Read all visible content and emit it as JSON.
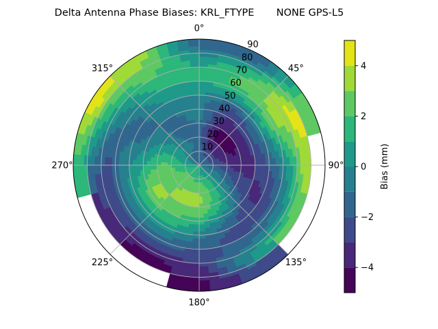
{
  "chart_data": {
    "type": "heatmap",
    "projection": "polar",
    "title": "Delta Antenna Phase Biases: KRL_FTYPE       NONE GPS-L5",
    "theta_direction": "clockwise",
    "theta_zero": "north",
    "theta_tick_labels": [
      "0°",
      "45°",
      "90°",
      "135°",
      "180°",
      "225°",
      "270°",
      "315°"
    ],
    "radial_tick_labels": [
      "10",
      "20",
      "30",
      "40",
      "50",
      "60",
      "70",
      "80",
      "90"
    ],
    "rlim": [
      0,
      90
    ],
    "grid": true,
    "azimuth_deg": [
      0,
      30,
      60,
      90,
      120,
      150,
      180,
      210,
      240,
      270,
      300,
      330
    ],
    "zenith_deg": [
      5,
      15,
      25,
      35,
      45,
      55,
      65,
      75,
      85
    ],
    "values_mm": [
      [
        -1.5,
        -1.5,
        -1.5,
        -0.5,
        -0.5,
        0.5,
        1.5,
        0.5,
        -1.5
      ],
      [
        -1.5,
        -3.5,
        -4.5,
        -3.5,
        -2.5,
        0.5,
        2.5,
        1.5,
        -1.5
      ],
      [
        -1.5,
        -3.5,
        -4.5,
        -3.5,
        -1.5,
        1.5,
        3.5,
        4.5,
        2.5
      ],
      [
        -1.5,
        -2.5,
        -3.5,
        -3.5,
        -2.5,
        -1.5,
        0.5,
        3.5,
        null
      ],
      [
        -0.5,
        -0.5,
        -1.5,
        -2.5,
        -3.5,
        -2.5,
        -0.5,
        2.5,
        null
      ],
      [
        0.5,
        1.5,
        1.5,
        0.5,
        -1.5,
        -2.5,
        -1.5,
        0.5,
        -2.5
      ],
      [
        0.5,
        2.5,
        3.5,
        2.5,
        0.5,
        -1.5,
        -2.5,
        -3.5,
        -4.5
      ],
      [
        1.5,
        2.5,
        3.5,
        2.5,
        1.5,
        -0.5,
        -2.5,
        -4.5,
        null
      ],
      [
        1.5,
        2.5,
        2.5,
        3.5,
        1.5,
        -0.5,
        -2.5,
        -3.5,
        null
      ],
      [
        0.5,
        1.5,
        2.5,
        1.5,
        0.5,
        -0.5,
        -2.5,
        -1.5,
        1.5
      ],
      [
        -0.5,
        0.5,
        0.5,
        -0.5,
        -1.5,
        -1.5,
        -0.5,
        1.5,
        4.5
      ],
      [
        -1.5,
        -0.5,
        -1.5,
        -1.5,
        -0.5,
        0.5,
        1.5,
        2.5,
        3.5
      ]
    ],
    "colorbar": {
      "label": "Bias (mm)",
      "range": [
        -5,
        5
      ],
      "levels": [
        -5,
        -4,
        -3,
        -2,
        -1,
        0,
        1,
        2,
        3,
        4,
        5
      ],
      "tick_labels": [
        "−4",
        "−2",
        "0",
        "2",
        "4"
      ],
      "tick_values": [
        -4,
        -2,
        0,
        2,
        4
      ],
      "colormap": "viridis",
      "colors": [
        "#450457",
        "#482878",
        "#3e4a89",
        "#31678e",
        "#27808e",
        "#1f9a8a",
        "#2db77a",
        "#5ec962",
        "#a0da39",
        "#e3e418"
      ]
    }
  }
}
